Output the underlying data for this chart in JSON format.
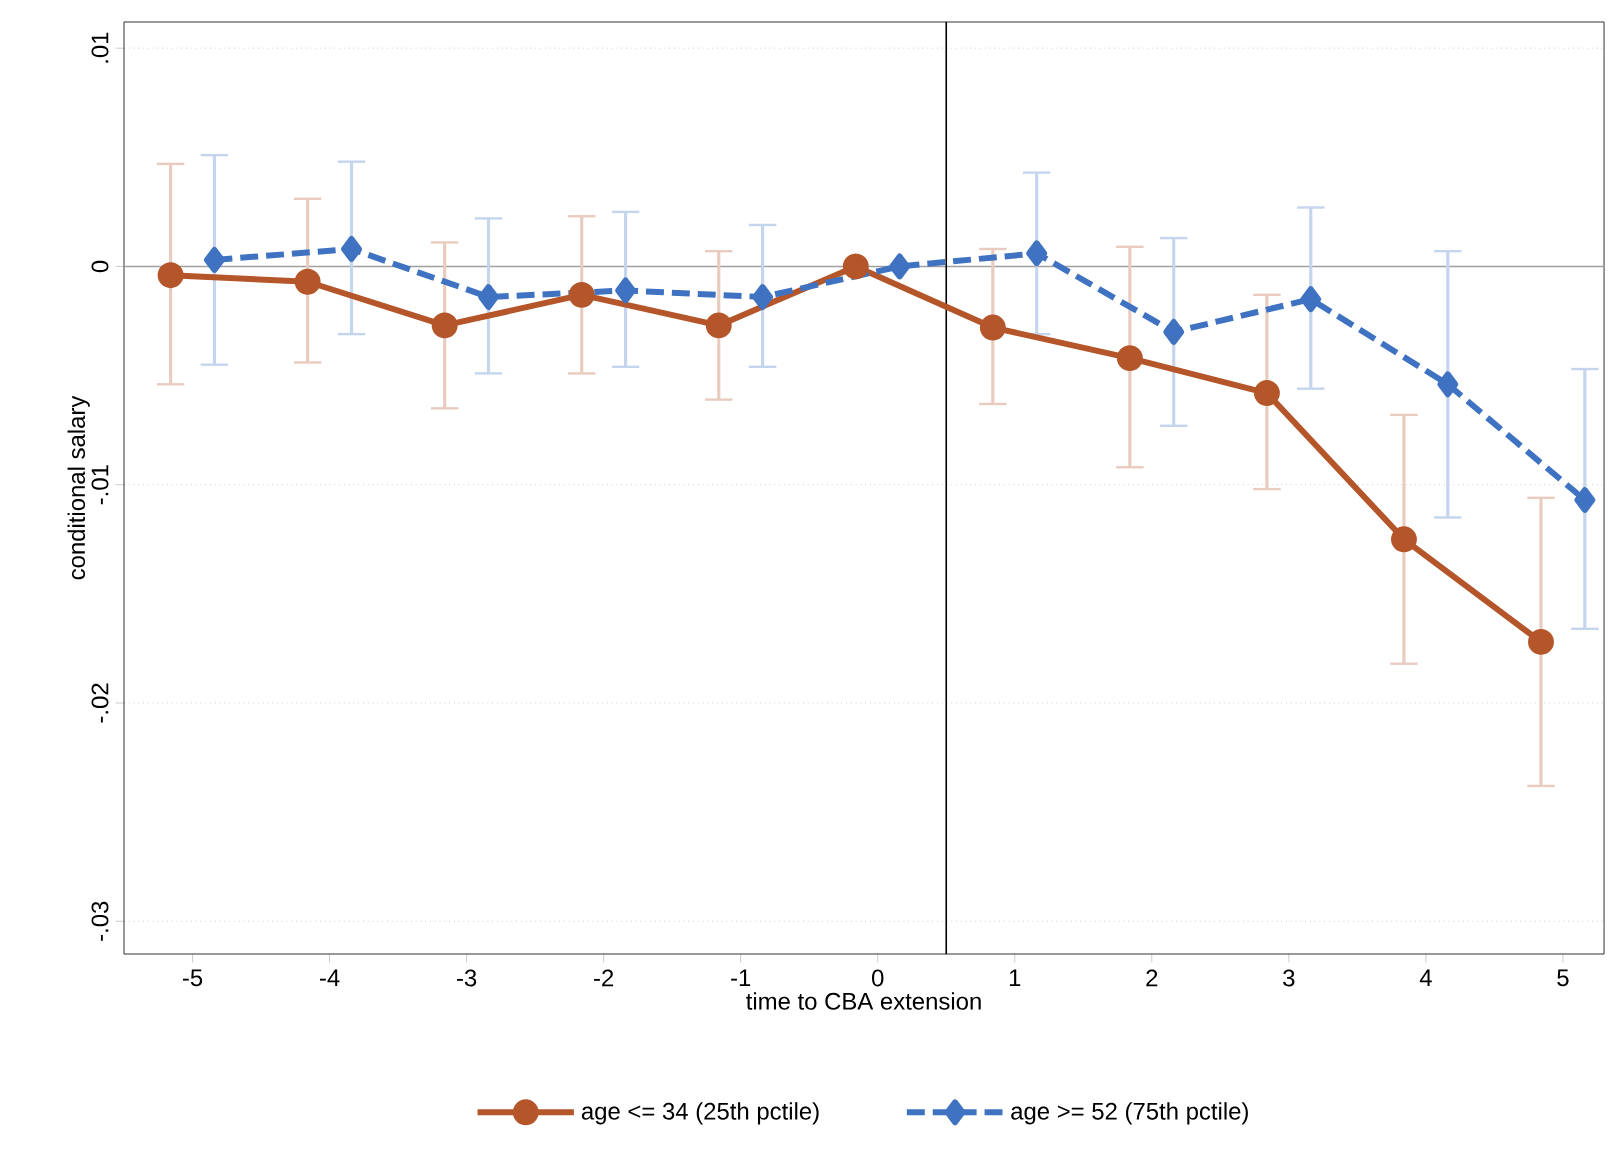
{
  "chart_data": {
    "type": "line",
    "xlabel": "time to CBA extension",
    "ylabel": "conditional salary",
    "xlim": [
      -5.5,
      5.3
    ],
    "ylim": [
      -0.0315,
      0.0112
    ],
    "xticks": [
      -5,
      -4,
      -3,
      -2,
      -1,
      0,
      1,
      2,
      3,
      4,
      5
    ],
    "yticks": [
      {
        "value": 0.01,
        "label": ".01"
      },
      {
        "value": 0,
        "label": "0"
      },
      {
        "value": -0.01,
        "label": "-.01"
      },
      {
        "value": -0.02,
        "label": "-.02"
      },
      {
        "value": -0.03,
        "label": "-.03"
      }
    ],
    "grid": "y",
    "legend": "bottom",
    "ref_lines": [
      {
        "axis": "y",
        "value": 0,
        "color": "#a0a0a0"
      },
      {
        "axis": "x",
        "value": 0.5,
        "color": "#000000"
      }
    ],
    "series": [
      {
        "name": "age <= 34 (25th pctile)",
        "color": "#b5562a",
        "marker": "circle",
        "line_style": "solid",
        "x": [
          -5.16,
          -4.16,
          -3.16,
          -2.16,
          -1.16,
          -0.16,
          0.84,
          1.84,
          2.84,
          3.84,
          4.84
        ],
        "values": [
          -0.0004,
          -0.0007,
          -0.0027,
          -0.0013,
          -0.0027,
          0,
          -0.0028,
          -0.0042,
          -0.0058,
          -0.0125,
          -0.0172
        ],
        "errors": [
          [
            -0.0054,
            0.0047
          ],
          [
            -0.0044,
            0.0031
          ],
          [
            -0.0065,
            0.0011
          ],
          [
            -0.0049,
            0.0023
          ],
          [
            -0.0061,
            0.0007
          ],
          null,
          [
            -0.0063,
            0.0008
          ],
          [
            -0.0092,
            0.0009
          ],
          [
            -0.0102,
            -0.0013
          ],
          [
            -0.0182,
            -0.0068
          ],
          [
            -0.0238,
            -0.0106
          ]
        ]
      },
      {
        "name": "age >= 52 (75th pctile)",
        "color": "#3f73c2",
        "marker": "diamond",
        "line_style": "dashed",
        "x": [
          -4.84,
          -3.84,
          -2.84,
          -1.84,
          -0.84,
          0.16,
          1.16,
          2.16,
          3.16,
          4.16,
          5.16
        ],
        "values": [
          0.0003,
          0.0008,
          -0.0014,
          -0.0011,
          -0.0014,
          0,
          0.0006,
          -0.003,
          -0.0015,
          -0.0054,
          -0.0107
        ],
        "errors": [
          [
            -0.0045,
            0.0051
          ],
          [
            -0.0031,
            0.0048
          ],
          [
            -0.0049,
            0.0022
          ],
          [
            -0.0046,
            0.0025
          ],
          [
            -0.0046,
            0.0019
          ],
          null,
          [
            -0.0031,
            0.0043
          ],
          [
            -0.0073,
            0.0013
          ],
          [
            -0.0056,
            0.0027
          ],
          [
            -0.0115,
            0.0007
          ],
          [
            -0.0166,
            -0.0047
          ]
        ]
      }
    ]
  }
}
